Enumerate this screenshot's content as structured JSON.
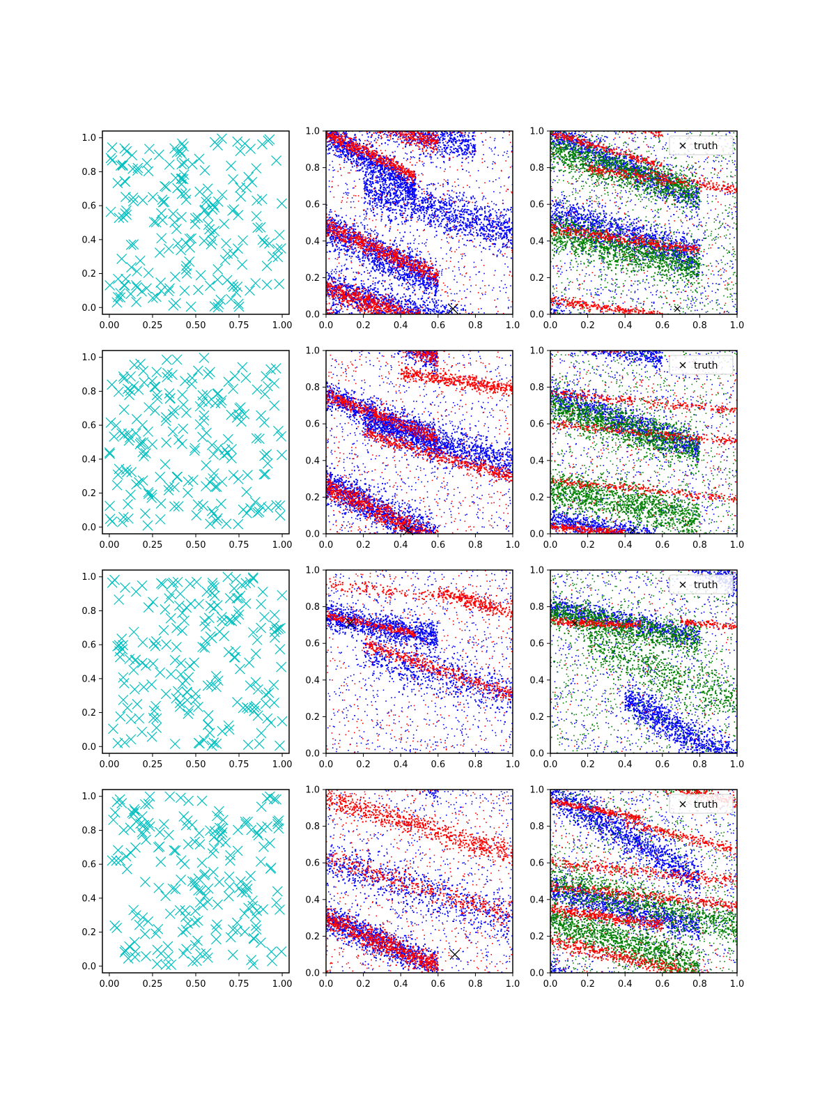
{
  "figure": {
    "rows": 4,
    "columns": 3
  },
  "colors": {
    "prior": "#00BFBF",
    "blue": "#0000FF",
    "red": "#FF0000",
    "green": "#008000",
    "truth": "#000000",
    "axes": "#000000"
  },
  "legend_label": "truth",
  "chart_data": [
    {
      "id": "r1c1",
      "type": "scatter",
      "marker": "x",
      "color": "#00BFBF",
      "xlim": [
        -0.04,
        1.04
      ],
      "ylim": [
        -0.04,
        1.04
      ],
      "xticks": [
        "0.00",
        "0.25",
        "0.50",
        "0.75",
        "1.00"
      ],
      "yticks": [
        "0.0",
        "0.2",
        "0.4",
        "0.6",
        "0.8",
        "1.0"
      ],
      "seed": 11,
      "n": 200,
      "points": "uniform random samples in [0,1]^2 (~200 points)"
    },
    {
      "id": "r1c2",
      "type": "scatter",
      "xlim": [
        0,
        1
      ],
      "ylim": [
        0,
        1
      ],
      "xticks": [
        "0.0",
        "0.2",
        "0.4",
        "0.6",
        "0.8",
        "1.0"
      ],
      "yticks": [
        "0.0",
        "0.2",
        "0.4",
        "0.6",
        "0.8",
        "1.0"
      ],
      "truth": [
        0.68,
        0.03
      ],
      "legend": false,
      "seed": 101,
      "series": [
        {
          "color": "blue",
          "bands": [
            [
              0.0,
              0.98,
              -0.6,
              0.12,
              0.04
            ],
            [
              0.0,
              0.47,
              -0.5,
              0.15,
              0.05
            ],
            [
              0.0,
              0.15,
              -0.3,
              0.2,
              0.05
            ],
            [
              0.2,
              0.68,
              -0.3,
              0.8,
              0.06
            ]
          ],
          "noise": 700
        },
        {
          "color": "red",
          "bands": [
            [
              0.0,
              0.99,
              -0.5,
              0.12,
              0.02
            ],
            [
              0.0,
              0.48,
              -0.45,
              0.15,
              0.025
            ],
            [
              0.0,
              0.14,
              -0.35,
              0.15,
              0.03
            ]
          ],
          "noise": 400
        }
      ]
    },
    {
      "id": "r1c3",
      "type": "scatter",
      "xlim": [
        0,
        1
      ],
      "ylim": [
        0,
        1
      ],
      "xticks": [
        "0.0",
        "0.2",
        "0.4",
        "0.6",
        "0.8",
        "1.0"
      ],
      "yticks": [
        "0.0",
        "0.2",
        "0.4",
        "0.6",
        "0.8",
        "1.0"
      ],
      "truth": [
        0.68,
        0.03
      ],
      "legend": true,
      "seed": 202,
      "series": [
        {
          "color": "blue",
          "bands": [
            [
              0.0,
              0.99,
              -0.45,
              0.2,
              0.04
            ],
            [
              0.0,
              0.55,
              -0.3,
              0.2,
              0.05
            ]
          ],
          "noise": 900
        },
        {
          "color": "green",
          "bands": [
            [
              0.0,
              0.9,
              -0.3,
              0.2,
              0.05
            ],
            [
              0.0,
              0.45,
              -0.25,
              0.2,
              0.05
            ]
          ],
          "noise": 900
        },
        {
          "color": "red",
          "bands": [
            [
              0.0,
              0.99,
              -0.3,
              0.15,
              0.01
            ],
            [
              0.0,
              0.08,
              -0.15,
              0.15,
              0.012
            ],
            [
              0.0,
              0.47,
              -0.15,
              0.2,
              0.015
            ],
            [
              0.2,
              0.8,
              -0.15,
              0.3,
              0.015
            ]
          ],
          "noise": 250
        }
      ]
    },
    {
      "id": "r2c1",
      "type": "scatter",
      "marker": "x",
      "color": "#00BFBF",
      "xlim": [
        -0.04,
        1.04
      ],
      "ylim": [
        -0.04,
        1.04
      ],
      "xticks": [
        "0.00",
        "0.25",
        "0.50",
        "0.75",
        "1.00"
      ],
      "yticks": [
        "0.0",
        "0.2",
        "0.4",
        "0.6",
        "0.8",
        "1.0"
      ],
      "seed": 22,
      "n": 200,
      "points": "uniform random samples in [0,1]^2 (~200 points)"
    },
    {
      "id": "r2c2",
      "type": "scatter",
      "xlim": [
        0,
        1
      ],
      "ylim": [
        0,
        1
      ],
      "xticks": [
        "0.0",
        "0.2",
        "0.4",
        "0.6",
        "0.8",
        "1.0"
      ],
      "yticks": [
        "0.0",
        "0.2",
        "0.4",
        "0.6",
        "0.8",
        "1.0"
      ],
      "truth": [
        0.44,
        0.02
      ],
      "legend": false,
      "seed": 303,
      "series": [
        {
          "color": "blue",
          "bands": [
            [
              0.0,
              0.76,
              -0.45,
              0.15,
              0.04
            ],
            [
              0.0,
              0.27,
              -0.5,
              0.15,
              0.05
            ],
            [
              0.2,
              0.62,
              -0.3,
              0.6,
              0.05
            ]
          ],
          "noise": 700
        },
        {
          "color": "red",
          "bands": [
            [
              0.0,
              0.76,
              -0.4,
              0.15,
              0.02
            ],
            [
              0.0,
              0.26,
              -0.5,
              0.15,
              0.03
            ],
            [
              0.2,
              0.55,
              -0.3,
              0.6,
              0.02
            ],
            [
              0.4,
              0.88,
              -0.15,
              0.6,
              0.02
            ]
          ],
          "noise": 450
        }
      ]
    },
    {
      "id": "r2c3",
      "type": "scatter",
      "xlim": [
        0,
        1
      ],
      "ylim": [
        0,
        1
      ],
      "xticks": [
        "0.0",
        "0.2",
        "0.4",
        "0.6",
        "0.8",
        "1.0"
      ],
      "yticks": [
        "0.0",
        "0.2",
        "0.4",
        "0.6",
        "0.8",
        "1.0"
      ],
      "truth": [
        0.44,
        0.02
      ],
      "legend": true,
      "seed": 404,
      "series": [
        {
          "color": "blue",
          "bands": [
            [
              0.0,
              0.75,
              -0.35,
              0.2,
              0.04
            ],
            [
              0.0,
              0.08,
              -0.2,
              0.15,
              0.03
            ]
          ],
          "noise": 800
        },
        {
          "color": "green",
          "bands": [
            [
              0.0,
              0.7,
              -0.3,
              0.2,
              0.05
            ],
            [
              0.0,
              0.25,
              -0.2,
              0.2,
              0.05
            ]
          ],
          "noise": 800
        },
        {
          "color": "red",
          "bands": [
            [
              0.0,
              0.04,
              -0.09,
              0.1,
              0.01
            ],
            [
              0.0,
              0.77,
              -0.1,
              0.3,
              0.012
            ],
            [
              0.0,
              0.6,
              -0.1,
              0.3,
              0.012
            ],
            [
              0.0,
              0.29,
              -0.1,
              0.3,
              0.012
            ]
          ],
          "noise": 300
        }
      ]
    },
    {
      "id": "r3c1",
      "type": "scatter",
      "marker": "x",
      "color": "#00BFBF",
      "xlim": [
        -0.04,
        1.04
      ],
      "ylim": [
        -0.04,
        1.04
      ],
      "xticks": [
        "0.00",
        "0.25",
        "0.50",
        "0.75",
        "1.00"
      ],
      "yticks": [
        "0.0",
        "0.2",
        "0.4",
        "0.6",
        "0.8",
        "1.0"
      ],
      "seed": 33,
      "n": 200,
      "points": "uniform random samples in [0,1]^2 (~200 points)"
    },
    {
      "id": "r3c2",
      "type": "scatter",
      "xlim": [
        0,
        1
      ],
      "ylim": [
        0,
        1
      ],
      "xticks": [
        "0.0",
        "0.2",
        "0.4",
        "0.6",
        "0.8",
        "1.0"
      ],
      "yticks": [
        "0.0",
        "0.2",
        "0.4",
        "0.6",
        "0.8",
        "1.0"
      ],
      "truth": [
        0.13,
        0.71
      ],
      "legend": false,
      "seed": 505,
      "series": [
        {
          "color": "blue",
          "bands": [
            [
              0.0,
              0.75,
              -0.2,
              0.15,
              0.04
            ],
            [
              0.2,
              0.55,
              -0.3,
              0.5,
              0.06
            ]
          ],
          "noise": 800
        },
        {
          "color": "red",
          "bands": [
            [
              0.0,
              0.75,
              -0.2,
              0.12,
              0.01
            ],
            [
              0.0,
              0.92,
              -0.1,
              0.5,
              0.015
            ],
            [
              0.6,
              0.88,
              -0.3,
              0.5,
              0.02
            ],
            [
              0.2,
              0.6,
              -0.35,
              0.3,
              0.02
            ]
          ],
          "noise": 400
        }
      ]
    },
    {
      "id": "r3c3",
      "type": "scatter",
      "xlim": [
        0,
        1
      ],
      "ylim": [
        0,
        1
      ],
      "xticks": [
        "0.0",
        "0.2",
        "0.4",
        "0.6",
        "0.8",
        "1.0"
      ],
      "yticks": [
        "0.0",
        "0.2",
        "0.4",
        "0.6",
        "0.8",
        "1.0"
      ],
      "truth": [
        0.13,
        0.71
      ],
      "legend": true,
      "seed": 606,
      "series": [
        {
          "color": "blue",
          "bands": [
            [
              0.0,
              0.8,
              -0.2,
              0.2,
              0.03
            ],
            [
              0.4,
              0.3,
              -0.6,
              0.3,
              0.05
            ]
          ],
          "noise": 900
        },
        {
          "color": "green",
          "bands": [
            [
              0.0,
              0.77,
              -0.2,
              0.2,
              0.04
            ],
            [
              0.2,
              0.6,
              -0.4,
              0.5,
              0.06
            ]
          ],
          "noise": 900
        },
        {
          "color": "red",
          "bands": [
            [
              0.0,
              0.72,
              -0.05,
              0.12,
              0.01
            ],
            [
              0.7,
              0.72,
              -0.1,
              0.5,
              0.01
            ]
          ],
          "noise": 150
        }
      ]
    },
    {
      "id": "r4c1",
      "type": "scatter",
      "marker": "x",
      "color": "#00BFBF",
      "xlim": [
        -0.04,
        1.04
      ],
      "ylim": [
        -0.04,
        1.04
      ],
      "xticks": [
        "0.00",
        "0.25",
        "0.50",
        "0.75",
        "1.00"
      ],
      "yticks": [
        "0.0",
        "0.2",
        "0.4",
        "0.6",
        "0.8",
        "1.0"
      ],
      "seed": 44,
      "n": 200,
      "points": "uniform random samples in [0,1]^2 (~200 points)"
    },
    {
      "id": "r4c2",
      "type": "scatter",
      "xlim": [
        0,
        1
      ],
      "ylim": [
        0,
        1
      ],
      "xticks": [
        "0.0",
        "0.2",
        "0.4",
        "0.6",
        "0.8",
        "1.0"
      ],
      "yticks": [
        "0.0",
        "0.2",
        "0.4",
        "0.6",
        "0.8",
        "1.0"
      ],
      "truth": [
        0.69,
        0.1
      ],
      "legend": false,
      "seed": 707,
      "series": [
        {
          "color": "blue",
          "bands": [
            [
              0.0,
              0.3,
              -0.45,
              0.15,
              0.04
            ],
            [
              0.0,
              0.6,
              -0.3,
              0.5,
              0.06
            ]
          ],
          "noise": 700
        },
        {
          "color": "red",
          "bands": [
            [
              0.0,
              0.3,
              -0.45,
              0.15,
              0.03
            ],
            [
              0.0,
              0.95,
              -0.3,
              0.6,
              0.03
            ],
            [
              0.0,
              0.62,
              -0.3,
              0.5,
              0.03
            ]
          ],
          "noise": 500
        }
      ]
    },
    {
      "id": "r4c3",
      "type": "scatter",
      "xlim": [
        0,
        1
      ],
      "ylim": [
        0,
        1
      ],
      "xticks": [
        "0.0",
        "0.2",
        "0.4",
        "0.6",
        "0.8",
        "1.0"
      ],
      "yticks": [
        "0.0",
        "0.2",
        "0.4",
        "0.6",
        "0.8",
        "1.0"
      ],
      "truth": [
        0.69,
        0.1
      ],
      "legend": true,
      "seed": 808,
      "series": [
        {
          "color": "blue",
          "bands": [
            [
              0.0,
              0.99,
              -0.6,
              0.2,
              0.05
            ],
            [
              0.0,
              0.45,
              -0.25,
              0.2,
              0.04
            ]
          ],
          "noise": 900
        },
        {
          "color": "green",
          "bands": [
            [
              0.0,
              0.3,
              -0.35,
              0.2,
              0.05
            ],
            [
              0.0,
              0.5,
              -0.25,
              0.3,
              0.05
            ]
          ],
          "noise": 900
        },
        {
          "color": "red",
          "bands": [
            [
              0.0,
              0.94,
              -0.2,
              0.12,
              0.01
            ],
            [
              0.0,
              0.35,
              -0.15,
              0.15,
              0.015
            ],
            [
              0.0,
              0.47,
              -0.1,
              0.3,
              0.015
            ],
            [
              0.0,
              0.18,
              -0.25,
              0.25,
              0.02
            ],
            [
              0.4,
              0.82,
              -0.25,
              0.4,
              0.015
            ],
            [
              0.0,
              0.6,
              -0.1,
              0.3,
              0.015
            ]
          ],
          "noise": 350
        }
      ]
    }
  ]
}
